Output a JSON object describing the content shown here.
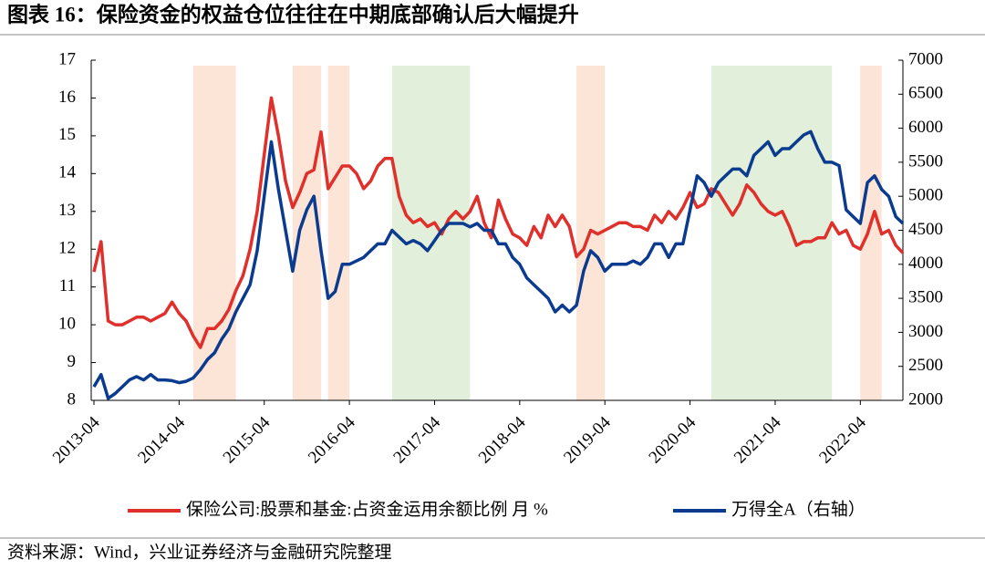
{
  "chart_data": {
    "type": "line",
    "title": "图表 16：保险资金的权益仓位往往在中期底部确认后大幅提升",
    "source": "资料来源：Wind，兴业证券经济与金融研究院整理",
    "x": [
      "2013-04",
      "2013-05",
      "2013-06",
      "2013-07",
      "2013-08",
      "2013-09",
      "2013-10",
      "2013-11",
      "2013-12",
      "2014-01",
      "2014-02",
      "2014-03",
      "2014-04",
      "2014-05",
      "2014-06",
      "2014-07",
      "2014-08",
      "2014-09",
      "2014-10",
      "2014-11",
      "2014-12",
      "2015-01",
      "2015-02",
      "2015-03",
      "2015-04",
      "2015-05",
      "2015-06",
      "2015-07",
      "2015-08",
      "2015-09",
      "2015-10",
      "2015-11",
      "2015-12",
      "2016-01",
      "2016-02",
      "2016-03",
      "2016-04",
      "2016-05",
      "2016-06",
      "2016-07",
      "2016-08",
      "2016-09",
      "2016-10",
      "2016-11",
      "2016-12",
      "2017-01",
      "2017-02",
      "2017-03",
      "2017-04",
      "2017-05",
      "2017-06",
      "2017-07",
      "2017-08",
      "2017-09",
      "2017-10",
      "2017-11",
      "2017-12",
      "2018-01",
      "2018-02",
      "2018-03",
      "2018-04",
      "2018-05",
      "2018-06",
      "2018-07",
      "2018-08",
      "2018-09",
      "2018-10",
      "2018-11",
      "2018-12",
      "2019-01",
      "2019-02",
      "2019-03",
      "2019-04",
      "2019-05",
      "2019-06",
      "2019-07",
      "2019-08",
      "2019-09",
      "2019-10",
      "2019-11",
      "2019-12",
      "2020-01",
      "2020-02",
      "2020-03",
      "2020-04",
      "2020-05",
      "2020-06",
      "2020-07",
      "2020-08",
      "2020-09",
      "2020-10",
      "2020-11",
      "2020-12",
      "2021-01",
      "2021-02",
      "2021-03",
      "2021-04",
      "2021-05",
      "2021-06",
      "2021-07",
      "2021-08",
      "2021-09",
      "2021-10",
      "2021-11",
      "2021-12",
      "2022-01",
      "2022-02",
      "2022-03",
      "2022-04",
      "2022-05",
      "2022-06",
      "2022-07",
      "2022-08",
      "2022-09",
      "2022-10"
    ],
    "xticks": [
      "2013-04",
      "2014-04",
      "2015-04",
      "2016-04",
      "2017-04",
      "2018-04",
      "2019-04",
      "2020-04",
      "2021-04",
      "2022-04"
    ],
    "series": [
      {
        "name": "保险公司:股票和基金:占资金运用余额比例 月 %",
        "color": "#e0302c",
        "axis": "y",
        "values": [
          11.4,
          12.2,
          10.1,
          10.0,
          10.0,
          10.1,
          10.2,
          10.2,
          10.1,
          10.2,
          10.3,
          10.6,
          10.3,
          10.1,
          9.7,
          9.4,
          9.9,
          9.9,
          10.1,
          10.4,
          10.9,
          11.3,
          12.0,
          13.0,
          14.5,
          16.0,
          15.0,
          13.8,
          13.1,
          13.5,
          14.0,
          14.1,
          15.1,
          13.6,
          13.9,
          14.2,
          14.2,
          14.0,
          13.6,
          13.8,
          14.2,
          14.4,
          14.4,
          13.4,
          12.9,
          12.7,
          12.8,
          12.6,
          12.7,
          12.4,
          12.8,
          13.0,
          12.8,
          13.0,
          13.4,
          12.7,
          12.3,
          13.3,
          12.8,
          12.4,
          12.3,
          12.1,
          12.6,
          12.3,
          12.9,
          12.6,
          12.9,
          12.6,
          11.8,
          12.0,
          12.5,
          12.4,
          12.5,
          12.6,
          12.7,
          12.7,
          12.6,
          12.6,
          12.5,
          12.9,
          12.7,
          13.0,
          12.8,
          13.1,
          13.5,
          13.1,
          13.2,
          13.6,
          13.5,
          13.2,
          12.9,
          13.2,
          13.7,
          13.5,
          13.2,
          13.0,
          12.9,
          13.0,
          12.6,
          12.1,
          12.2,
          12.2,
          12.3,
          12.3,
          12.7,
          12.4,
          12.5,
          12.1,
          12.0,
          12.4,
          13.0,
          12.4,
          12.5,
          12.1,
          11.9
        ]
      },
      {
        "name": "万得全A（右轴）",
        "color": "#0b3b8f",
        "axis": "y2",
        "values": [
          2200,
          2380,
          2030,
          2100,
          2200,
          2300,
          2350,
          2300,
          2380,
          2300,
          2300,
          2290,
          2260,
          2280,
          2330,
          2450,
          2600,
          2700,
          2900,
          3050,
          3300,
          3500,
          3700,
          4200,
          5000,
          5800,
          5100,
          4500,
          3900,
          4500,
          4800,
          5000,
          4200,
          3500,
          3600,
          4000,
          4000,
          4050,
          4100,
          4200,
          4300,
          4300,
          4500,
          4400,
          4300,
          4350,
          4300,
          4200,
          4350,
          4500,
          4600,
          4600,
          4600,
          4550,
          4600,
          4500,
          4500,
          4300,
          4300,
          4100,
          4000,
          3800,
          3700,
          3600,
          3500,
          3300,
          3400,
          3300,
          3400,
          3900,
          4200,
          4100,
          3900,
          4000,
          4000,
          4000,
          4050,
          4000,
          4100,
          4300,
          4300,
          4100,
          4300,
          4300,
          4800,
          5300,
          5200,
          5000,
          5200,
          5300,
          5400,
          5400,
          5300,
          5600,
          5700,
          5800,
          5600,
          5700,
          5700,
          5800,
          5900,
          5950,
          5700,
          5500,
          5500,
          5450,
          4800,
          4700,
          4600,
          5200,
          5300,
          5100,
          5000,
          4700,
          4600
        ]
      }
    ],
    "ylim": [
      8,
      17
    ],
    "yticks": [
      8,
      9,
      10,
      11,
      12,
      13,
      14,
      15,
      16,
      17
    ],
    "y2lim": [
      2000,
      7000
    ],
    "y2ticks": [
      2000,
      2500,
      3000,
      3500,
      4000,
      4500,
      5000,
      5500,
      6000,
      6500,
      7000
    ],
    "shaded_periods": [
      {
        "start": "2014-06",
        "end": "2014-12",
        "color": "#fce4d6"
      },
      {
        "start": "2015-08",
        "end": "2015-12",
        "color": "#fce4d6"
      },
      {
        "start": "2016-01",
        "end": "2016-04",
        "color": "#fce4d6"
      },
      {
        "start": "2016-10",
        "end": "2017-09",
        "color": "#e2efda"
      },
      {
        "start": "2018-12",
        "end": "2019-04",
        "color": "#fce4d6"
      },
      {
        "start": "2020-07",
        "end": "2021-12",
        "color": "#e2efda"
      },
      {
        "start": "2022-04",
        "end": "2022-07",
        "color": "#fce4d6"
      }
    ]
  }
}
